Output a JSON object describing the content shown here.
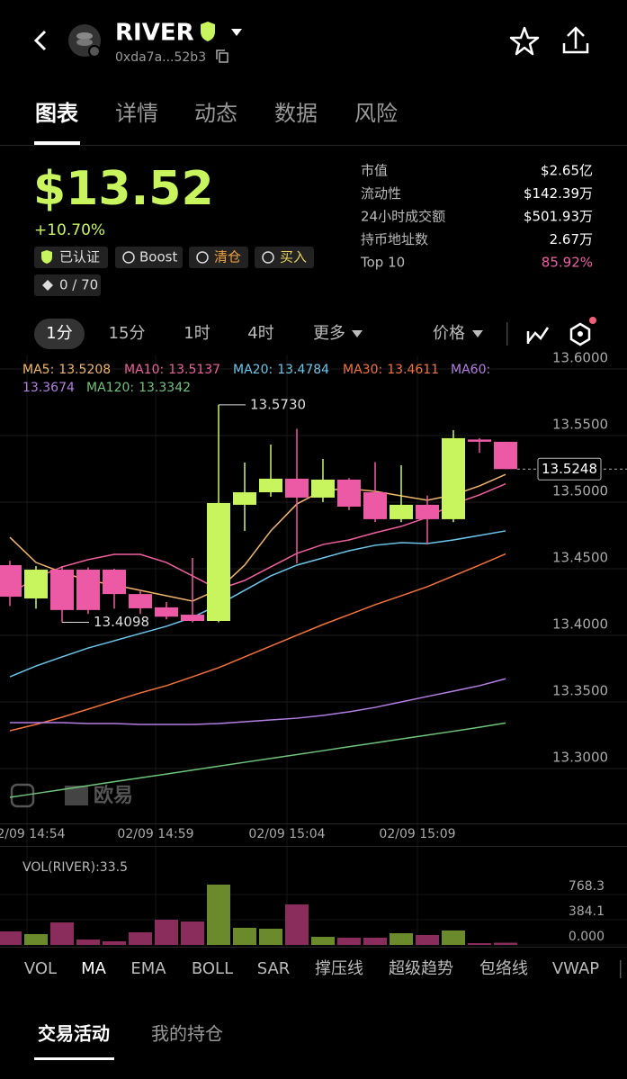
{
  "header": {
    "token": "RIVER",
    "address": "0xda7a...52b3"
  },
  "tabs": [
    "图表",
    "详情",
    "动态",
    "数据",
    "风险"
  ],
  "price": {
    "value": "$13.52",
    "change": "+10.70%"
  },
  "badges": [
    "已认证",
    "Boost",
    "清仓",
    "买入",
    "0 / 70"
  ],
  "stats": [
    {
      "label": "市值",
      "value": "$2.65亿"
    },
    {
      "label": "流动性",
      "value": "$142.39万"
    },
    {
      "label": "24小时成交额",
      "value": "$501.93万"
    },
    {
      "label": "持币地址数",
      "value": "2.67万"
    },
    {
      "label": "Top 10",
      "value": "85.92%"
    }
  ],
  "timeframes": [
    "1分",
    "15分",
    "1时",
    "4时",
    "更多",
    "价格"
  ],
  "chart_data": {
    "type": "candlestick",
    "times": [
      "02/09 14:54",
      "02/09 14:59",
      "02/09 15:04",
      "02/09 15:09"
    ],
    "up_color": "#c8f55e",
    "down_color": "#ec5aa6",
    "candles": [
      {
        "open": 13.4527,
        "close": 13.429,
        "high": 13.456,
        "low": 13.422
      },
      {
        "open": 13.4277,
        "close": 13.4493,
        "high": 13.452,
        "low": 13.42
      },
      {
        "open": 13.4493,
        "close": 13.419,
        "high": 13.452,
        "low": 13.4098
      },
      {
        "open": 13.4493,
        "close": 13.419,
        "high": 13.451,
        "low": 13.416
      },
      {
        "open": 13.4493,
        "close": 13.431,
        "high": 13.45,
        "low": 13.42
      },
      {
        "open": 13.431,
        "close": 13.4203,
        "high": 13.434,
        "low": 13.416
      },
      {
        "open": 13.421,
        "close": 13.414,
        "high": 13.425,
        "low": 13.412
      },
      {
        "open": 13.4155,
        "close": 13.4108,
        "high": 13.4581,
        "low": 13.4098
      },
      {
        "open": 13.4108,
        "close": 13.4993,
        "high": 13.573,
        "low": 13.4098
      },
      {
        "open": 13.498,
        "close": 13.5074,
        "high": 13.5297,
        "low": 13.4784
      },
      {
        "open": 13.5074,
        "close": 13.5176,
        "high": 13.5432,
        "low": 13.504
      },
      {
        "open": 13.5176,
        "close": 13.5034,
        "high": 13.555,
        "low": 13.454
      },
      {
        "open": 13.5034,
        "close": 13.5169,
        "high": 13.5324,
        "low": 13.5
      },
      {
        "open": 13.5169,
        "close": 13.4966,
        "high": 13.518,
        "low": 13.494
      },
      {
        "open": 13.5074,
        "close": 13.4872,
        "high": 13.53,
        "low": 13.485
      },
      {
        "open": 13.4872,
        "close": 13.498,
        "high": 13.5277,
        "low": 13.485
      },
      {
        "open": 13.498,
        "close": 13.4872,
        "high": 13.505,
        "low": 13.4682
      },
      {
        "open": 13.4872,
        "close": 13.548,
        "high": 13.554,
        "low": 13.485
      },
      {
        "open": 13.547,
        "close": 13.5453,
        "high": 13.548,
        "low": 13.537
      },
      {
        "open": 13.5453,
        "close": 13.5248,
        "high": 13.5453,
        "low": 13.5248
      }
    ],
    "series": [
      {
        "name": "MA5:",
        "color": "#f2b66b",
        "last": 13.5208,
        "values": [
          13.4736,
          13.4547,
          13.4473,
          13.4412,
          13.4378,
          13.4338,
          13.4297,
          13.4257,
          13.4345,
          13.4527,
          13.4784,
          13.4986,
          13.5088,
          13.5101,
          13.5081,
          13.5047,
          13.5014,
          13.5054,
          13.5122,
          13.5208
        ]
      },
      {
        "name": "MA10:",
        "color": "#f0609e",
        "last": 13.5137,
        "values": [
          13.4311,
          13.4432,
          13.4514,
          13.4568,
          13.4608,
          13.4608,
          13.4547,
          13.4446,
          13.4345,
          13.4412,
          13.4514,
          13.4615,
          13.4682,
          13.4716,
          13.477,
          13.4818,
          13.4885,
          13.4986,
          13.5054,
          13.5137
        ]
      },
      {
        "name": "MA20:",
        "color": "#6cc6ec",
        "last": 13.4784,
        "values": [
          13.3689,
          13.377,
          13.3838,
          13.3905,
          13.3959,
          13.4014,
          13.4068,
          13.4135,
          13.423,
          13.4338,
          13.4446,
          13.4527,
          13.4581,
          13.4635,
          13.4676,
          13.4696,
          13.4689,
          13.4716,
          13.475,
          13.4784
        ]
      },
      {
        "name": "MA30:",
        "color": "#f4733a",
        "last": 13.4611,
        "values": [
          13.3284,
          13.3331,
          13.3385,
          13.3446,
          13.3507,
          13.3568,
          13.3622,
          13.3689,
          13.3757,
          13.3838,
          13.3919,
          13.4,
          13.4081,
          13.4155,
          13.423,
          13.4297,
          13.4365,
          13.4446,
          13.4527,
          13.4611
        ]
      },
      {
        "name": "MA60:",
        "color": "#b47ee4",
        "last": 13.3674,
        "values": [
          13.3345,
          13.3345,
          13.3345,
          13.3338,
          13.3338,
          13.3331,
          13.3331,
          13.3331,
          13.3338,
          13.3351,
          13.3365,
          13.3378,
          13.3399,
          13.3426,
          13.3459,
          13.35,
          13.3541,
          13.3581,
          13.3622,
          13.3674
        ]
      },
      {
        "name": "MA120:",
        "color": "#6ec47a",
        "last": 13.3342,
        "values": [
          13.2784,
          13.2813,
          13.2842,
          13.2872,
          13.2901,
          13.293,
          13.2959,
          13.2988,
          13.3018,
          13.3047,
          13.3076,
          13.3105,
          13.3134,
          13.3164,
          13.3193,
          13.3222,
          13.3251,
          13.328,
          13.331,
          13.3342
        ]
      }
    ],
    "ylim": [
      13.2588,
      13.6101
    ],
    "yticks": [
      {
        "value": 13.6,
        "label": "13.6000"
      },
      {
        "value": 13.55,
        "label": "13.5500"
      },
      {
        "value": 13.5,
        "label": "13.5000"
      },
      {
        "value": 13.45,
        "label": "13.4500"
      },
      {
        "value": 13.4,
        "label": "13.4000"
      },
      {
        "value": 13.35,
        "label": "13.3500"
      },
      {
        "value": 13.3,
        "label": "13.3000"
      }
    ],
    "grid": true,
    "last_price": 13.5248,
    "high_label": {
      "value": 13.573,
      "label": "13.5730"
    },
    "low_label": 13.4098,
    "watermark": "欧易"
  },
  "volume": {
    "title": "VOL(RIVER):33.5",
    "up_color": "#6a8a2c",
    "down_color": "#8a2c5c",
    "values": [
      206,
      165,
      343,
      82,
      55,
      192,
      384,
      357,
      919,
      261,
      247,
      617,
      123,
      110,
      110,
      178,
      151,
      220,
      27,
      33.5
    ],
    "ylim": [
      0,
      1303
    ],
    "yticks": [
      768.3,
      384.1,
      {
        "value": 0,
        "label": "0.000"
      }
    ]
  },
  "indicators": [
    "VOL",
    "MA",
    "EMA",
    "BOLL",
    "SAR",
    "撑压线",
    "超级趋势",
    "包络线",
    "VWAP"
  ],
  "bottom_tabs": [
    "交易活动",
    "我的持仓"
  ]
}
